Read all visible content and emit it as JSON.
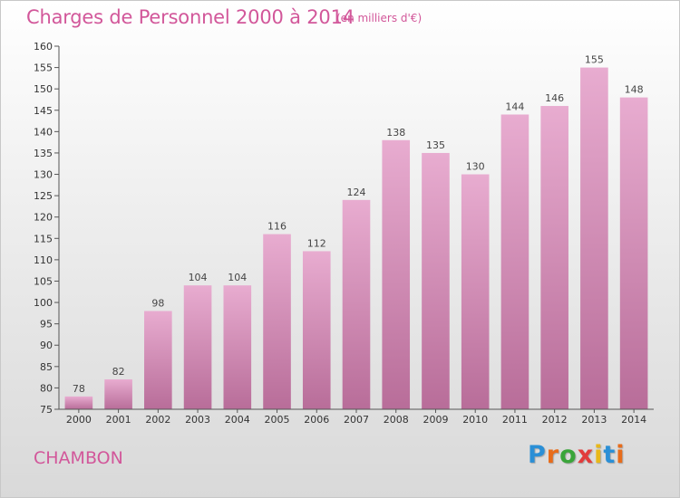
{
  "header": {
    "title": "Charges de Personnel 2000 à 2014",
    "subtitle": "(en milliers d'€)"
  },
  "footer": {
    "commune": "CHAMBON",
    "logo_letters": [
      "P",
      "r",
      "o",
      "x",
      "i",
      "t",
      "i"
    ],
    "logo_colors": [
      "#2a8fd6",
      "#e86c1a",
      "#3aa53a",
      "#e23b3b",
      "#e8b81a",
      "#2a8fd6",
      "#e86c1a"
    ]
  },
  "colors": {
    "bar_top": "#e8acd0",
    "bar_bottom": "#b86d99",
    "title": "#d2579a"
  },
  "chart_data": {
    "type": "bar",
    "title": "Charges de Personnel 2000 à 2014",
    "subtitle": "(en milliers d'€)",
    "categories": [
      "2000",
      "2001",
      "2002",
      "2003",
      "2004",
      "2005",
      "2006",
      "2007",
      "2008",
      "2009",
      "2010",
      "2011",
      "2012",
      "2013",
      "2014"
    ],
    "values": [
      78,
      82,
      98,
      104,
      104,
      116,
      112,
      124,
      138,
      135,
      130,
      144,
      146,
      155,
      148
    ],
    "ylim": [
      75,
      160
    ],
    "yticks": [
      75,
      80,
      85,
      90,
      95,
      100,
      105,
      110,
      115,
      120,
      125,
      130,
      135,
      140,
      145,
      150,
      155,
      160
    ],
    "grid": false,
    "legend": "none"
  }
}
